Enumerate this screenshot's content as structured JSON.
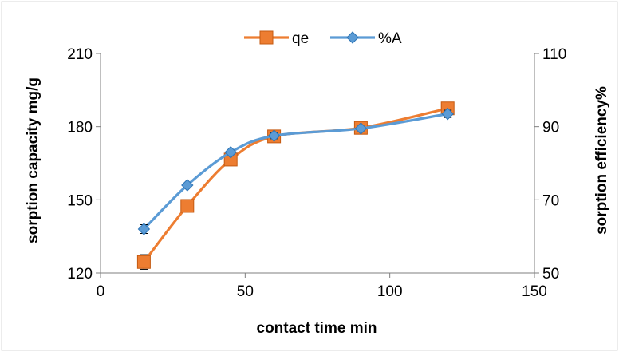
{
  "chart_data": {
    "type": "line",
    "xlabel": "contact time min",
    "ylabel_left": "sorption capacity mg/g",
    "ylabel_right": "sorption efficiency%",
    "xlim": [
      0,
      150
    ],
    "xticks": [
      0,
      50,
      100,
      150
    ],
    "ylim_left": [
      120,
      210
    ],
    "yticks_left": [
      120,
      150,
      180,
      210
    ],
    "ylim_right": [
      50,
      110
    ],
    "yticks_right": [
      50,
      70,
      90,
      110
    ],
    "grid": false,
    "legend_position": "top-center",
    "series": [
      {
        "name": "qe",
        "axis": "left",
        "color": "#ED7D31",
        "marker": "square",
        "x": [
          15,
          30,
          45,
          60,
          90,
          120
        ],
        "y": [
          124.5,
          147.5,
          166.5,
          176,
          179.5,
          187.5
        ],
        "err": [
          3,
          0,
          0,
          1.5,
          1,
          1.5
        ]
      },
      {
        "name": "%A",
        "axis": "right",
        "color": "#5B9BD5",
        "marker": "diamond",
        "x": [
          15,
          30,
          45,
          60,
          90,
          120
        ],
        "y": [
          62,
          74,
          83,
          87.5,
          89.5,
          93.5
        ],
        "err": [
          1.2,
          0.4,
          0.4,
          0.8,
          0.6,
          1.0
        ]
      }
    ]
  }
}
